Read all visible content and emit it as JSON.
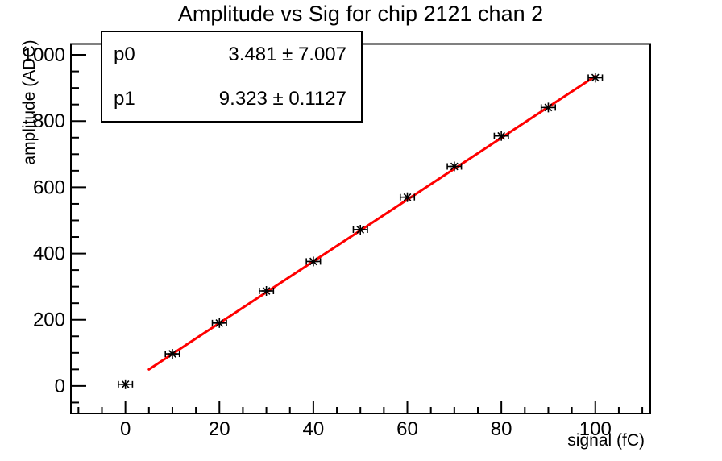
{
  "title": "Amplitude vs Sig for chip 2121 chan 2",
  "stats_box": {
    "rows": [
      {
        "label": "p0",
        "value": "3.481 ± 7.007"
      },
      {
        "label": "p1",
        "value": "9.323 ± 0.1127"
      }
    ]
  },
  "chart_data": {
    "type": "scatter",
    "title": "Amplitude vs Sig for chip 2121 chan 2",
    "xlabel": "signal (fC)",
    "ylabel": "amplitude (ADC)",
    "x": [
      0,
      10,
      20,
      30,
      40,
      50,
      60,
      70,
      80,
      90,
      100
    ],
    "y": [
      5,
      97,
      190,
      287,
      376,
      472,
      570,
      663,
      755,
      841,
      931
    ],
    "xerr": 1.5,
    "marker": "asterisk-with-error-caps",
    "fit": {
      "type": "linear",
      "p0": 3.481,
      "p1": 9.323,
      "range": [
        5,
        100
      ]
    },
    "xlim": [
      -11.6,
      111.7
    ],
    "ylim": [
      -83,
      1033
    ],
    "x_major_ticks": [
      0,
      20,
      40,
      60,
      80,
      100
    ],
    "x_minor_step": 5,
    "x_minor_range": [
      -10,
      110
    ],
    "y_major_ticks": [
      0,
      200,
      400,
      600,
      800,
      1000
    ],
    "y_minor_step": 50,
    "y_minor_range": [
      -50,
      1000
    ],
    "grid": false,
    "legend_position": "none"
  },
  "colors": {
    "background": "#ffffff",
    "axis": "#000000",
    "marker": "#000000",
    "fit_line": "#ff0000",
    "text": "#000000"
  }
}
